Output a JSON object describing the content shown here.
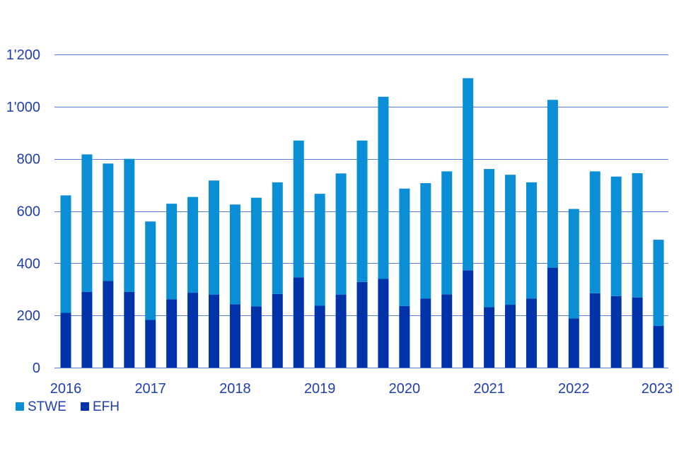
{
  "chart_data": {
    "type": "bar",
    "stacked": true,
    "categories": [
      "2016 Q1",
      "2016 Q2",
      "2016 Q3",
      "2016 Q4",
      "2017 Q1",
      "2017 Q2",
      "2017 Q3",
      "2017 Q4",
      "2018 Q1",
      "2018 Q2",
      "2018 Q3",
      "2018 Q4",
      "2019 Q1",
      "2019 Q2",
      "2019 Q3",
      "2019 Q4",
      "2020 Q1",
      "2020 Q2",
      "2020 Q3",
      "2020 Q4",
      "2021 Q1",
      "2021 Q2",
      "2021 Q3",
      "2021 Q4",
      "2022 Q1",
      "2022 Q2",
      "2022 Q3",
      "2022 Q4",
      "2023 Q1"
    ],
    "x_tick_labels": [
      "2016",
      "2017",
      "2018",
      "2019",
      "2020",
      "2021",
      "2022",
      "2023"
    ],
    "y_tick_labels": [
      "0",
      "200",
      "400",
      "600",
      "800",
      "1'000",
      "1'200"
    ],
    "y_ticks": [
      0,
      200,
      400,
      600,
      800,
      1000,
      1200
    ],
    "ylim": [
      0,
      1200
    ],
    "grid": "horizontal",
    "legend_position": "bottom-left",
    "title": "",
    "xlabel": "",
    "ylabel": "",
    "series": [
      {
        "name": "EFH",
        "color": "#0033aa",
        "values": [
          210,
          290,
          332,
          290,
          183,
          262,
          287,
          280,
          243,
          235,
          282,
          346,
          237,
          280,
          328,
          340,
          236,
          265,
          281,
          373,
          232,
          241,
          265,
          383,
          189,
          285,
          274,
          269,
          160
        ]
      },
      {
        "name": "STWE",
        "color": "#0a8ed6",
        "values": [
          450,
          527,
          450,
          510,
          377,
          366,
          367,
          437,
          382,
          416,
          428,
          524,
          429,
          464,
          542,
          698,
          450,
          442,
          471,
          736,
          529,
          498,
          445,
          643,
          419,
          467,
          458,
          476,
          330
        ]
      }
    ],
    "totals": [
      660,
      817,
      782,
      800,
      560,
      628,
      654,
      717,
      625,
      651,
      710,
      870,
      666,
      744,
      870,
      1038,
      686,
      707,
      752,
      1109,
      761,
      739,
      710,
      1026,
      608,
      752,
      732,
      745,
      490
    ]
  }
}
